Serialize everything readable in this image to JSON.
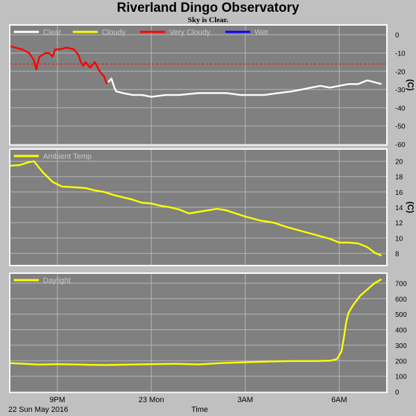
{
  "title": "Riverland Dingo Observatory",
  "subtitle": "Sky is Clear.",
  "xaxis": {
    "label": "Time",
    "date_label": "22 Sun May 2016",
    "ticks": [
      {
        "t": 1.0,
        "label": "9PM"
      },
      {
        "t": 3.0,
        "label": "23 Mon"
      },
      {
        "t": 5.0,
        "label": "3AM"
      },
      {
        "t": 7.0,
        "label": "6AM"
      }
    ],
    "range_hours_since_8pm": [
      0.0,
      8.0
    ]
  },
  "colors": {
    "clear": "#ffffff",
    "cloudy": "#ffff00",
    "very_cloudy": "#ff0000",
    "wet": "#0000ff",
    "plot_bg": "#808080",
    "frame_bg": "#c0c0c0",
    "threshold": "#ff0000"
  },
  "chart_data": [
    {
      "type": "line",
      "ylabel": "(C)",
      "ylim": [
        -60,
        5
      ],
      "yticks": [
        0,
        -10,
        -20,
        -30,
        -40,
        -50,
        -60
      ],
      "grid": true,
      "legend_position": "top-left",
      "legend": [
        {
          "name": "Clear",
          "color": "#ffffff"
        },
        {
          "name": "Cloudy",
          "color": "#ffff00"
        },
        {
          "name": "Very Cloudy",
          "color": "#ff0000"
        },
        {
          "name": "Wet",
          "color": "#0000ff"
        }
      ],
      "threshold": -16,
      "series": [
        {
          "name": "Very Cloudy",
          "x": [
            -0.05,
            0.1,
            0.25,
            0.4,
            0.5,
            0.55,
            0.62,
            0.68,
            0.75,
            0.82,
            0.9,
            0.95,
            1.05,
            1.2,
            1.35,
            1.45,
            1.5,
            1.55,
            1.6,
            1.7,
            1.8,
            1.9,
            2.0,
            2.02,
            2.06
          ],
          "y": [
            -6,
            -7,
            -8,
            -10,
            -14,
            -19,
            -12,
            -11,
            -10,
            -10,
            -12,
            -8,
            -8,
            -7,
            -8,
            -11,
            -15,
            -17,
            -15,
            -18,
            -15,
            -20,
            -23,
            -25,
            -27
          ]
        },
        {
          "name": "Clear",
          "x": [
            2.08,
            2.15,
            2.2,
            2.25,
            2.4,
            2.6,
            2.8,
            3.0,
            3.3,
            3.6,
            4.0,
            4.3,
            4.6,
            4.9,
            5.2,
            5.4,
            5.7,
            6.0,
            6.2,
            6.4,
            6.6,
            6.8,
            7.0,
            7.2,
            7.4,
            7.5,
            7.6,
            7.75,
            7.9
          ],
          "y": [
            -26,
            -24,
            -28,
            -31,
            -32,
            -33,
            -33,
            -34,
            -33,
            -33,
            -32,
            -32,
            -32,
            -33,
            -33,
            -33,
            -32,
            -31,
            -30,
            -29,
            -28,
            -29,
            -28,
            -27,
            -27,
            -26,
            -25,
            -26,
            -27
          ]
        }
      ]
    },
    {
      "type": "line",
      "ylabel": "(C)",
      "ylim": [
        6.5,
        21.5
      ],
      "yticks": [
        20,
        18,
        16,
        14,
        12,
        10,
        8
      ],
      "grid": true,
      "legend_position": "top-left",
      "legend": [
        {
          "name": "Ambient Temp",
          "color": "#ffff00"
        }
      ],
      "series": [
        {
          "name": "Ambient Temp",
          "x": [
            -0.05,
            0.2,
            0.4,
            0.5,
            0.7,
            0.9,
            1.1,
            1.4,
            1.6,
            1.8,
            2.0,
            2.2,
            2.4,
            2.6,
            2.8,
            3.0,
            3.2,
            3.4,
            3.6,
            3.8,
            4.0,
            4.2,
            4.4,
            4.6,
            4.8,
            5.0,
            5.3,
            5.6,
            5.9,
            6.2,
            6.5,
            6.8,
            7.0,
            7.2,
            7.4,
            7.6,
            7.75,
            7.9
          ],
          "y": [
            19.4,
            19.5,
            19.9,
            20.0,
            18.5,
            17.3,
            16.7,
            16.6,
            16.5,
            16.2,
            16.0,
            15.6,
            15.3,
            15.0,
            14.6,
            14.5,
            14.2,
            14.0,
            13.7,
            13.2,
            13.4,
            13.6,
            13.8,
            13.6,
            13.2,
            12.8,
            12.3,
            12.0,
            11.4,
            10.9,
            10.4,
            9.9,
            9.4,
            9.4,
            9.3,
            8.8,
            8.1,
            7.7
          ]
        }
      ]
    },
    {
      "type": "line",
      "ylabel": "",
      "ylim": [
        0,
        760
      ],
      "yticks": [
        700,
        600,
        500,
        400,
        300,
        200,
        100,
        0
      ],
      "grid": true,
      "legend_position": "top-left",
      "legend": [
        {
          "name": "Daylight",
          "color": "#ffff00"
        }
      ],
      "series": [
        {
          "name": "Daylight",
          "x": [
            -0.05,
            0.3,
            0.6,
            1.0,
            1.5,
            2.0,
            2.5,
            3.0,
            3.5,
            4.0,
            4.5,
            5.0,
            5.5,
            6.0,
            6.5,
            6.8,
            6.95,
            7.05,
            7.1,
            7.15,
            7.2,
            7.3,
            7.45,
            7.6,
            7.75,
            7.9
          ],
          "y": [
            185,
            180,
            175,
            178,
            175,
            172,
            175,
            178,
            180,
            176,
            185,
            190,
            195,
            198,
            198,
            200,
            210,
            260,
            350,
            450,
            510,
            560,
            620,
            660,
            700,
            725
          ]
        }
      ]
    }
  ]
}
